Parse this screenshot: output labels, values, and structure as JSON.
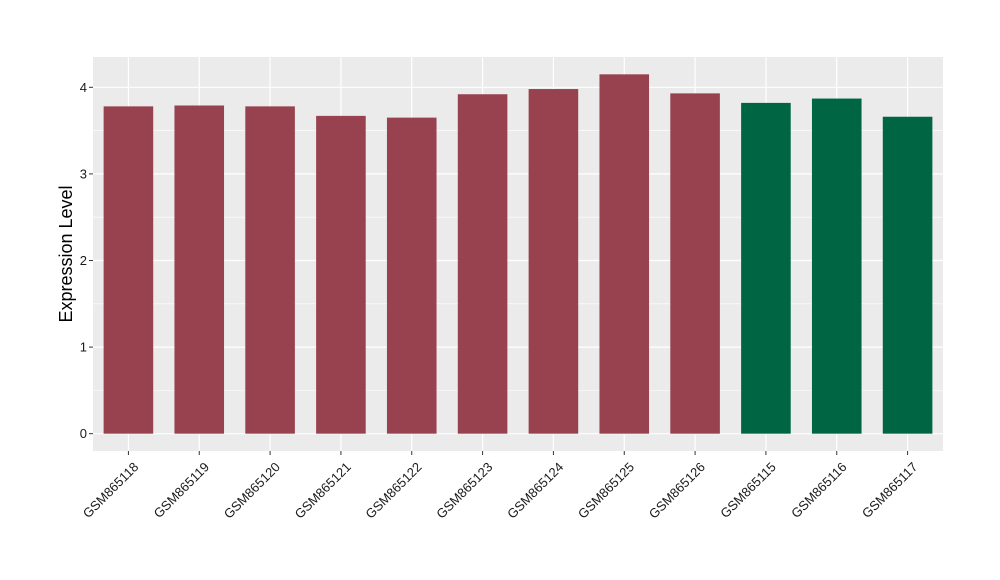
{
  "chart_data": {
    "type": "bar",
    "title": "",
    "xlabel": "",
    "ylabel": "Expression Level",
    "ylim": [
      -0.2,
      4.35
    ],
    "yticks": [
      0,
      1,
      2,
      3,
      4
    ],
    "grid": true,
    "categories": [
      "GSM865118",
      "GSM865119",
      "GSM865120",
      "GSM865121",
      "GSM865122",
      "GSM865123",
      "GSM865124",
      "GSM865125",
      "GSM865126",
      "GSM865115",
      "GSM865116",
      "GSM865117"
    ],
    "values": [
      3.78,
      3.79,
      3.78,
      3.67,
      3.65,
      3.92,
      3.98,
      4.15,
      3.93,
      3.82,
      3.87,
      3.66
    ],
    "bar_colors": [
      "#99424f",
      "#99424f",
      "#99424f",
      "#99424f",
      "#99424f",
      "#99424f",
      "#99424f",
      "#99424f",
      "#99424f",
      "#006543",
      "#006543",
      "#006543"
    ],
    "panel_color": "#ebebeb",
    "grid_color": "#ffffff"
  }
}
